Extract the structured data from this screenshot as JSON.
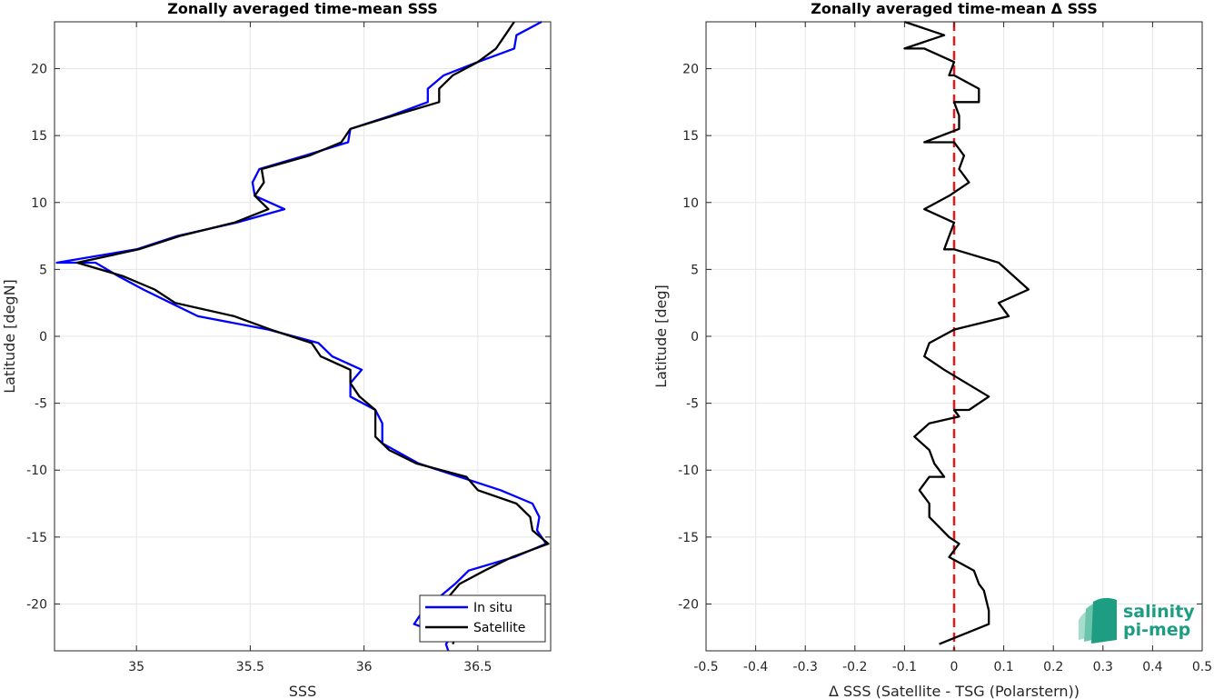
{
  "chart_data": [
    {
      "type": "line",
      "title": "Zonally averaged time-mean SSS",
      "xlabel": "SSS",
      "ylabel": "Latitude [degN]",
      "xlim": [
        34.64,
        36.82
      ],
      "ylim": [
        -23.5,
        23.5
      ],
      "xticks": [
        35,
        35.5,
        36,
        36.5
      ],
      "xtick_labels": [
        "35",
        "35.5",
        "36",
        "36.5"
      ],
      "yticks": [
        -20,
        -15,
        -10,
        -5,
        0,
        5,
        10,
        15,
        20
      ],
      "ytick_labels": [
        "-20",
        "-15",
        "-10",
        "-5",
        "0",
        "5",
        "10",
        "15",
        "20"
      ],
      "grid": true,
      "legend_placement": "bottom-right",
      "series": [
        {
          "name": "In situ",
          "color": "#0000ff",
          "points": [
            [
              36.37,
              -23.5
            ],
            [
              36.36,
              -23.0
            ],
            [
              36.38,
              -22.5
            ],
            [
              36.22,
              -21.5
            ],
            [
              36.26,
              -20.5
            ],
            [
              36.4,
              -18.5
            ],
            [
              36.46,
              -17.5
            ],
            [
              36.66,
              -16.5
            ],
            [
              36.8,
              -15.5
            ],
            [
              36.76,
              -14.5
            ],
            [
              36.77,
              -13.5
            ],
            [
              36.74,
              -12.5
            ],
            [
              36.6,
              -11.5
            ],
            [
              36.42,
              -10.5
            ],
            [
              36.24,
              -9.5
            ],
            [
              36.08,
              -8.0
            ],
            [
              36.08,
              -6.5
            ],
            [
              36.05,
              -5.5
            ],
            [
              35.94,
              -4.5
            ],
            [
              35.94,
              -3.5
            ],
            [
              35.99,
              -2.5
            ],
            [
              35.86,
              -1.5
            ],
            [
              35.8,
              -0.5
            ],
            [
              35.58,
              0.5
            ],
            [
              35.27,
              1.5
            ],
            [
              35.15,
              2.5
            ],
            [
              35.03,
              3.5
            ],
            [
              34.92,
              4.5
            ],
            [
              34.82,
              5.5
            ],
            [
              34.65,
              5.5
            ],
            [
              35.0,
              6.5
            ],
            [
              35.18,
              7.5
            ],
            [
              35.44,
              8.5
            ],
            [
              35.65,
              9.5
            ],
            [
              35.52,
              10.5
            ],
            [
              35.51,
              11.5
            ],
            [
              35.54,
              12.5
            ],
            [
              35.74,
              13.5
            ],
            [
              35.93,
              14.5
            ],
            [
              35.94,
              15.5
            ],
            [
              36.12,
              16.5
            ],
            [
              36.28,
              17.5
            ],
            [
              36.28,
              18.5
            ],
            [
              36.35,
              19.5
            ],
            [
              36.5,
              20.5
            ],
            [
              36.66,
              21.5
            ],
            [
              36.67,
              22.5
            ],
            [
              36.78,
              23.5
            ]
          ]
        },
        {
          "name": "Satellite",
          "color": "#000000",
          "points": [
            [
              36.39,
              -23.0
            ],
            [
              36.4,
              -22.5
            ],
            [
              36.32,
              -20.5
            ],
            [
              36.42,
              -18.5
            ],
            [
              36.53,
              -17.5
            ],
            [
              36.65,
              -16.5
            ],
            [
              36.81,
              -15.5
            ],
            [
              36.74,
              -14.5
            ],
            [
              36.73,
              -13.5
            ],
            [
              36.67,
              -12.5
            ],
            [
              36.5,
              -11.5
            ],
            [
              36.45,
              -10.5
            ],
            [
              36.23,
              -9.5
            ],
            [
              36.11,
              -8.5
            ],
            [
              36.05,
              -7.5
            ],
            [
              36.05,
              -6.0
            ],
            [
              36.05,
              -5.5
            ],
            [
              35.98,
              -4.5
            ],
            [
              35.94,
              -3.5
            ],
            [
              35.94,
              -2.5
            ],
            [
              35.81,
              -1.5
            ],
            [
              35.77,
              -0.5
            ],
            [
              35.59,
              0.5
            ],
            [
              35.43,
              1.5
            ],
            [
              35.17,
              2.5
            ],
            [
              35.08,
              3.5
            ],
            [
              34.94,
              4.5
            ],
            [
              34.74,
              5.5
            ],
            [
              35.01,
              6.5
            ],
            [
              35.19,
              7.5
            ],
            [
              35.43,
              8.5
            ],
            [
              35.58,
              9.5
            ],
            [
              35.52,
              10.5
            ],
            [
              35.56,
              11.5
            ],
            [
              35.55,
              12.5
            ],
            [
              35.76,
              13.5
            ],
            [
              35.9,
              14.5
            ],
            [
              35.94,
              15.5
            ],
            [
              36.13,
              16.5
            ],
            [
              36.33,
              17.5
            ],
            [
              36.33,
              18.5
            ],
            [
              36.39,
              19.5
            ],
            [
              36.5,
              20.5
            ],
            [
              36.58,
              21.5
            ],
            [
              36.62,
              22.5
            ],
            [
              36.66,
              23.5
            ]
          ]
        }
      ]
    },
    {
      "type": "line",
      "title": "Zonally averaged time-mean Δ SSS",
      "xlabel": "Δ SSS (Satellite - TSG (Polarstern))",
      "ylabel": "Latitude [deg]",
      "xlim": [
        -0.5,
        0.5
      ],
      "ylim": [
        -23.5,
        23.5
      ],
      "xticks": [
        -0.5,
        -0.4,
        -0.3,
        -0.2,
        -0.1,
        0,
        0.1,
        0.2,
        0.3,
        0.4,
        0.5
      ],
      "xtick_labels": [
        "-0.5",
        "-0.4",
        "-0.3",
        "-0.2",
        "-0.1",
        "0",
        "0.1",
        "0.2",
        "0.3",
        "0.4",
        "0.5"
      ],
      "yticks": [
        -20,
        -15,
        -10,
        -5,
        0,
        5,
        10,
        15,
        20
      ],
      "ytick_labels": [
        "-20",
        "-15",
        "-10",
        "-5",
        "0",
        "5",
        "10",
        "15",
        "20"
      ],
      "grid": true,
      "reference_line": {
        "x": 0,
        "color": "#e31a1c",
        "style": "dashed"
      },
      "series": [
        {
          "color": "#000000",
          "points": [
            [
              -0.03,
              -23.0
            ],
            [
              0.07,
              -21.5
            ],
            [
              0.07,
              -20.5
            ],
            [
              0.06,
              -19.0
            ],
            [
              0.05,
              -18.5
            ],
            [
              0.04,
              -17.5
            ],
            [
              -0.01,
              -16.5
            ],
            [
              0.01,
              -15.5
            ],
            [
              -0.01,
              -15.0
            ],
            [
              -0.05,
              -13.5
            ],
            [
              -0.05,
              -12.5
            ],
            [
              -0.07,
              -11.5
            ],
            [
              -0.05,
              -10.5
            ],
            [
              -0.02,
              -10.5
            ],
            [
              -0.04,
              -9.5
            ],
            [
              -0.05,
              -8.5
            ],
            [
              -0.08,
              -7.5
            ],
            [
              -0.05,
              -6.5
            ],
            [
              0.01,
              -6.0
            ],
            [
              0.0,
              -5.5
            ],
            [
              0.03,
              -5.5
            ],
            [
              0.07,
              -4.5
            ],
            [
              -0.02,
              -2.5
            ],
            [
              -0.06,
              -1.5
            ],
            [
              -0.05,
              -0.5
            ],
            [
              0.0,
              0.5
            ],
            [
              0.11,
              1.5
            ],
            [
              0.09,
              2.5
            ],
            [
              0.15,
              3.5
            ],
            [
              0.09,
              5.5
            ],
            [
              0.0,
              6.5
            ],
            [
              -0.02,
              6.5
            ],
            [
              -0.01,
              7.5
            ],
            [
              0.0,
              8.5
            ],
            [
              -0.06,
              9.5
            ],
            [
              -0.01,
              10.5
            ],
            [
              0.03,
              11.5
            ],
            [
              0.01,
              12.5
            ],
            [
              0.02,
              13.5
            ],
            [
              0.0,
              14.5
            ],
            [
              -0.06,
              14.5
            ],
            [
              0.01,
              15.5
            ],
            [
              0.01,
              16.5
            ],
            [
              0.0,
              17.5
            ],
            [
              0.05,
              17.5
            ],
            [
              0.05,
              18.5
            ],
            [
              0.0,
              19.5
            ],
            [
              -0.01,
              19.5
            ],
            [
              0.0,
              20.5
            ],
            [
              -0.06,
              21.5
            ],
            [
              -0.1,
              21.5
            ],
            [
              -0.02,
              22.5
            ],
            [
              -0.1,
              23.5
            ]
          ]
        }
      ]
    }
  ],
  "legend": {
    "entries": [
      "In situ",
      "Satellite"
    ]
  },
  "logo": {
    "line1": "salinity",
    "line2": "pi-mep",
    "color": "#1d9e83"
  }
}
